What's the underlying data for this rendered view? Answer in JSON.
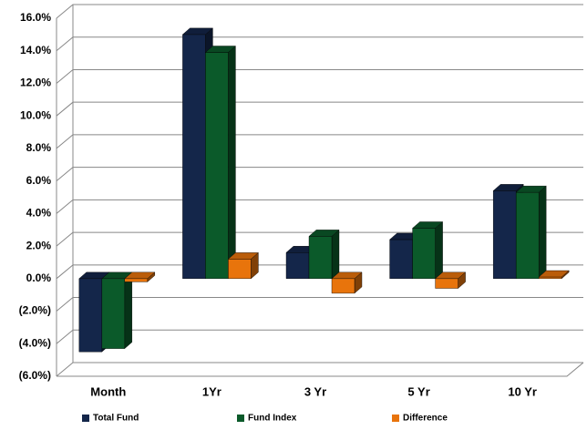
{
  "chart_data": {
    "type": "bar3d",
    "categories": [
      "Month",
      "1Yr",
      "3 Yr",
      "5 Yr",
      "10 Yr"
    ],
    "series": [
      {
        "name": "Total Fund",
        "color": "#14264a",
        "values": [
          -4.5,
          15.0,
          1.6,
          2.4,
          5.4
        ]
      },
      {
        "name": "Fund Index",
        "color": "#0b5a2a",
        "values": [
          -4.3,
          13.9,
          2.6,
          3.1,
          5.3
        ]
      },
      {
        "name": "Difference",
        "color": "#e8740c",
        "values": [
          -0.2,
          1.2,
          -0.9,
          -0.6,
          0.1
        ]
      }
    ],
    "ylim": [
      -6,
      16
    ],
    "yticks": [
      {
        "value": -6,
        "label": "(6.0%)"
      },
      {
        "value": -4,
        "label": "(4.0%)"
      },
      {
        "value": -2,
        "label": "(2.0%)"
      },
      {
        "value": 0,
        "label": "0.0%"
      },
      {
        "value": 2,
        "label": "2.0%"
      },
      {
        "value": 4,
        "label": "4.0%"
      },
      {
        "value": 6,
        "label": "6.0%"
      },
      {
        "value": 8,
        "label": "8.0%"
      },
      {
        "value": 10,
        "label": "10.0%"
      },
      {
        "value": 12,
        "label": "12.0%"
      },
      {
        "value": 14,
        "label": "14.0%"
      },
      {
        "value": 16,
        "label": "16.0%"
      }
    ],
    "grid": true,
    "legend": "bottom"
  }
}
